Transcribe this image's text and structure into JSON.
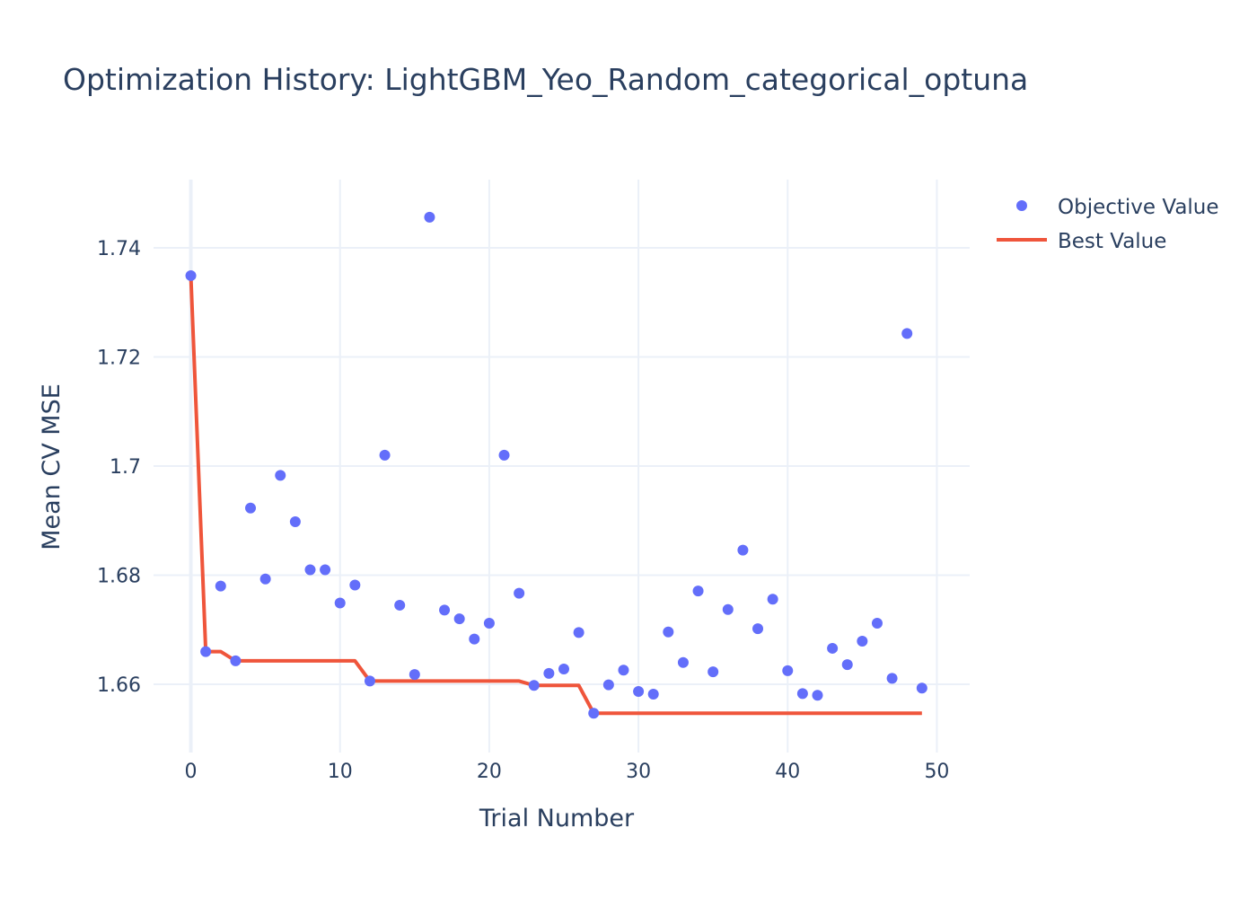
{
  "chart_data": {
    "type": "scatter",
    "title": "Optimization History: LightGBM_Yeo_Random_categorical_optuna",
    "xlabel": "Trial Number",
    "ylabel": "Mean CV MSE",
    "xlim": [
      -2.5,
      52.2
    ],
    "ylim": [
      1.6475,
      1.7525
    ],
    "x_ticks": [
      0,
      10,
      20,
      30,
      40,
      50
    ],
    "x_tick_labels": [
      "0",
      "10",
      "20",
      "30",
      "40",
      "50"
    ],
    "y_ticks": [
      1.66,
      1.68,
      1.7,
      1.72,
      1.74
    ],
    "y_tick_labels": [
      "1.66",
      "1.68",
      "1.7",
      "1.72",
      "1.74"
    ],
    "grid": true,
    "legend_position": "top-right",
    "series": [
      {
        "name": "Objective Value",
        "kind": "markers",
        "color": "#636efa",
        "x": [
          0,
          1,
          2,
          3,
          4,
          5,
          6,
          7,
          8,
          9,
          10,
          11,
          12,
          13,
          14,
          15,
          16,
          17,
          18,
          19,
          20,
          21,
          22,
          23,
          24,
          25,
          26,
          27,
          28,
          29,
          30,
          31,
          32,
          33,
          34,
          35,
          36,
          37,
          38,
          39,
          40,
          41,
          42,
          43,
          44,
          45,
          46,
          47,
          48,
          49
        ],
        "y": [
          1.7349,
          1.666,
          1.678,
          1.6643,
          1.6923,
          1.6793,
          1.6983,
          1.6898,
          1.681,
          1.681,
          1.6749,
          1.6782,
          1.6606,
          1.702,
          1.6745,
          1.6618,
          1.7456,
          1.6736,
          1.672,
          1.6683,
          1.6712,
          1.702,
          1.6767,
          1.6598,
          1.662,
          1.6628,
          1.6695,
          1.6547,
          1.6599,
          1.6626,
          1.6587,
          1.6582,
          1.6696,
          1.664,
          1.6771,
          1.6623,
          1.6737,
          1.6846,
          1.6702,
          1.6756,
          1.6625,
          1.6583,
          1.658,
          1.6666,
          1.6636,
          1.6679,
          1.6712,
          1.6611,
          1.7243,
          1.6593
        ]
      },
      {
        "name": "Best Value",
        "kind": "line",
        "color": "#ef553b",
        "x": [
          0,
          1,
          2,
          3,
          4,
          5,
          6,
          7,
          8,
          9,
          10,
          11,
          12,
          13,
          14,
          15,
          16,
          17,
          18,
          19,
          20,
          21,
          22,
          23,
          24,
          25,
          26,
          27,
          28,
          29,
          30,
          31,
          32,
          33,
          34,
          35,
          36,
          37,
          38,
          39,
          40,
          41,
          42,
          43,
          44,
          45,
          46,
          47,
          48,
          49
        ],
        "y": [
          1.7349,
          1.666,
          1.666,
          1.6643,
          1.6643,
          1.6643,
          1.6643,
          1.6643,
          1.6643,
          1.6643,
          1.6643,
          1.6643,
          1.6606,
          1.6606,
          1.6606,
          1.6606,
          1.6606,
          1.6606,
          1.6606,
          1.6606,
          1.6606,
          1.6606,
          1.6606,
          1.6598,
          1.6598,
          1.6598,
          1.6598,
          1.6547,
          1.6547,
          1.6547,
          1.6547,
          1.6547,
          1.6547,
          1.6547,
          1.6547,
          1.6547,
          1.6547,
          1.6547,
          1.6547,
          1.6547,
          1.6547,
          1.6547,
          1.6547,
          1.6547,
          1.6547,
          1.6547,
          1.6547,
          1.6547,
          1.6547,
          1.6547
        ]
      }
    ]
  }
}
